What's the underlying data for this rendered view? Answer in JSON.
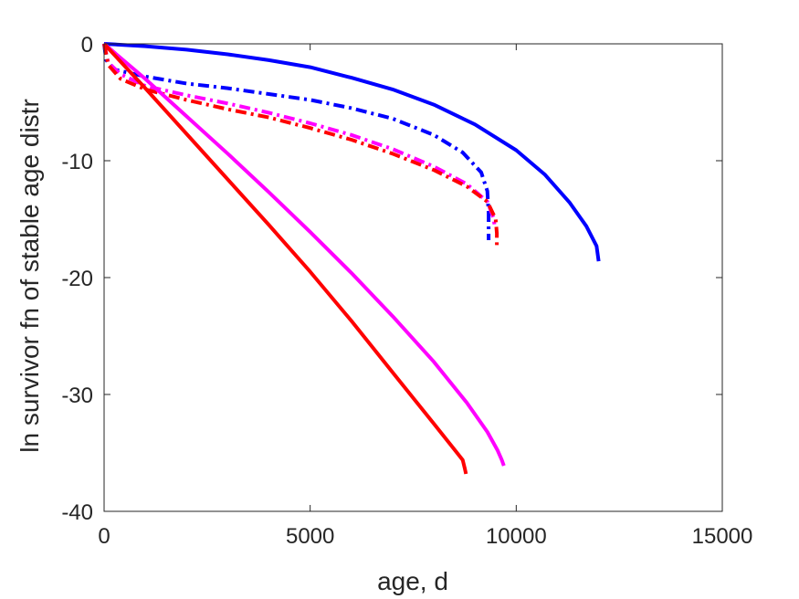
{
  "chart_data": {
    "type": "line",
    "title": "",
    "xlabel": "age, d",
    "ylabel": "ln survivor fn of stable age distr",
    "xlim": [
      0,
      15000
    ],
    "ylim": [
      -40,
      0
    ],
    "xticks": [
      0,
      5000,
      10000,
      15000
    ],
    "yticks": [
      0,
      -10,
      -20,
      -30,
      -40
    ],
    "xtick_labels": [
      "0",
      "5000",
      "10000",
      "15000"
    ],
    "ytick_labels": [
      "0",
      "-10",
      "-20",
      "-30",
      "-40"
    ],
    "grid": false,
    "legend": "none",
    "series": [
      {
        "color": "#0000ff",
        "style": "solid",
        "points": [
          [
            0,
            0
          ],
          [
            1000,
            -0.2
          ],
          [
            2000,
            -0.5
          ],
          [
            3000,
            -0.9
          ],
          [
            4000,
            -1.4
          ],
          [
            5000,
            -2.0
          ],
          [
            6000,
            -2.9
          ],
          [
            7000,
            -3.9
          ],
          [
            8000,
            -5.2
          ],
          [
            9000,
            -6.9
          ],
          [
            10000,
            -9.1
          ],
          [
            10700,
            -11.2
          ],
          [
            11300,
            -13.6
          ],
          [
            11700,
            -15.6
          ],
          [
            11950,
            -17.3
          ],
          [
            12000,
            -18.6
          ]
        ]
      },
      {
        "color": "#0000ff",
        "style": "dashdot",
        "points": [
          [
            0,
            0
          ],
          [
            50,
            -1.4
          ],
          [
            250,
            -2.2
          ],
          [
            1000,
            -2.8
          ],
          [
            2000,
            -3.4
          ],
          [
            3000,
            -3.8
          ],
          [
            4000,
            -4.3
          ],
          [
            5000,
            -4.8
          ],
          [
            6000,
            -5.5
          ],
          [
            7000,
            -6.4
          ],
          [
            8000,
            -7.8
          ],
          [
            8700,
            -9.3
          ],
          [
            9150,
            -11.0
          ],
          [
            9300,
            -12.6
          ],
          [
            9330,
            -14.5
          ],
          [
            9330,
            -16.8
          ]
        ]
      },
      {
        "color": "#ff00ff",
        "style": "dashdot",
        "points": [
          [
            0,
            0
          ],
          [
            100,
            -1.6
          ],
          [
            400,
            -2.6
          ],
          [
            1000,
            -3.6
          ],
          [
            2000,
            -4.4
          ],
          [
            3000,
            -5.1
          ],
          [
            4000,
            -5.9
          ],
          [
            5000,
            -6.8
          ],
          [
            6000,
            -7.8
          ],
          [
            7000,
            -9.0
          ],
          [
            8000,
            -10.5
          ],
          [
            8800,
            -12.0
          ],
          [
            9300,
            -13.5
          ],
          [
            9450,
            -14.9
          ],
          [
            9480,
            -15.7
          ]
        ]
      },
      {
        "color": "#ff0000",
        "style": "dashdot",
        "points": [
          [
            0,
            0
          ],
          [
            100,
            -1.8
          ],
          [
            400,
            -3.0
          ],
          [
            1000,
            -3.9
          ],
          [
            2000,
            -4.8
          ],
          [
            3000,
            -5.6
          ],
          [
            4000,
            -6.3
          ],
          [
            5000,
            -7.2
          ],
          [
            6000,
            -8.2
          ],
          [
            7000,
            -9.4
          ],
          [
            8000,
            -10.8
          ],
          [
            8800,
            -12.2
          ],
          [
            9300,
            -13.5
          ],
          [
            9500,
            -15.0
          ],
          [
            9530,
            -16.2
          ],
          [
            9530,
            -17.3
          ]
        ]
      },
      {
        "color": "#ff00ff",
        "style": "solid",
        "points": [
          [
            0,
            0
          ],
          [
            1000,
            -3.0
          ],
          [
            2000,
            -6.2
          ],
          [
            3000,
            -9.4
          ],
          [
            4000,
            -12.7
          ],
          [
            5000,
            -16.1
          ],
          [
            6000,
            -19.6
          ],
          [
            7000,
            -23.3
          ],
          [
            8000,
            -27.2
          ],
          [
            8800,
            -30.7
          ],
          [
            9300,
            -33.2
          ],
          [
            9550,
            -34.8
          ],
          [
            9650,
            -35.6
          ],
          [
            9700,
            -36.1
          ]
        ]
      },
      {
        "color": "#ff0000",
        "style": "solid",
        "points": [
          [
            0,
            0
          ],
          [
            1000,
            -3.8
          ],
          [
            2000,
            -7.7
          ],
          [
            3000,
            -11.6
          ],
          [
            4000,
            -15.5
          ],
          [
            5000,
            -19.5
          ],
          [
            6000,
            -23.7
          ],
          [
            7000,
            -28.1
          ],
          [
            8000,
            -32.5
          ],
          [
            8500,
            -34.7
          ],
          [
            8700,
            -35.6
          ],
          [
            8750,
            -36.3
          ],
          [
            8780,
            -36.8
          ]
        ]
      }
    ]
  }
}
